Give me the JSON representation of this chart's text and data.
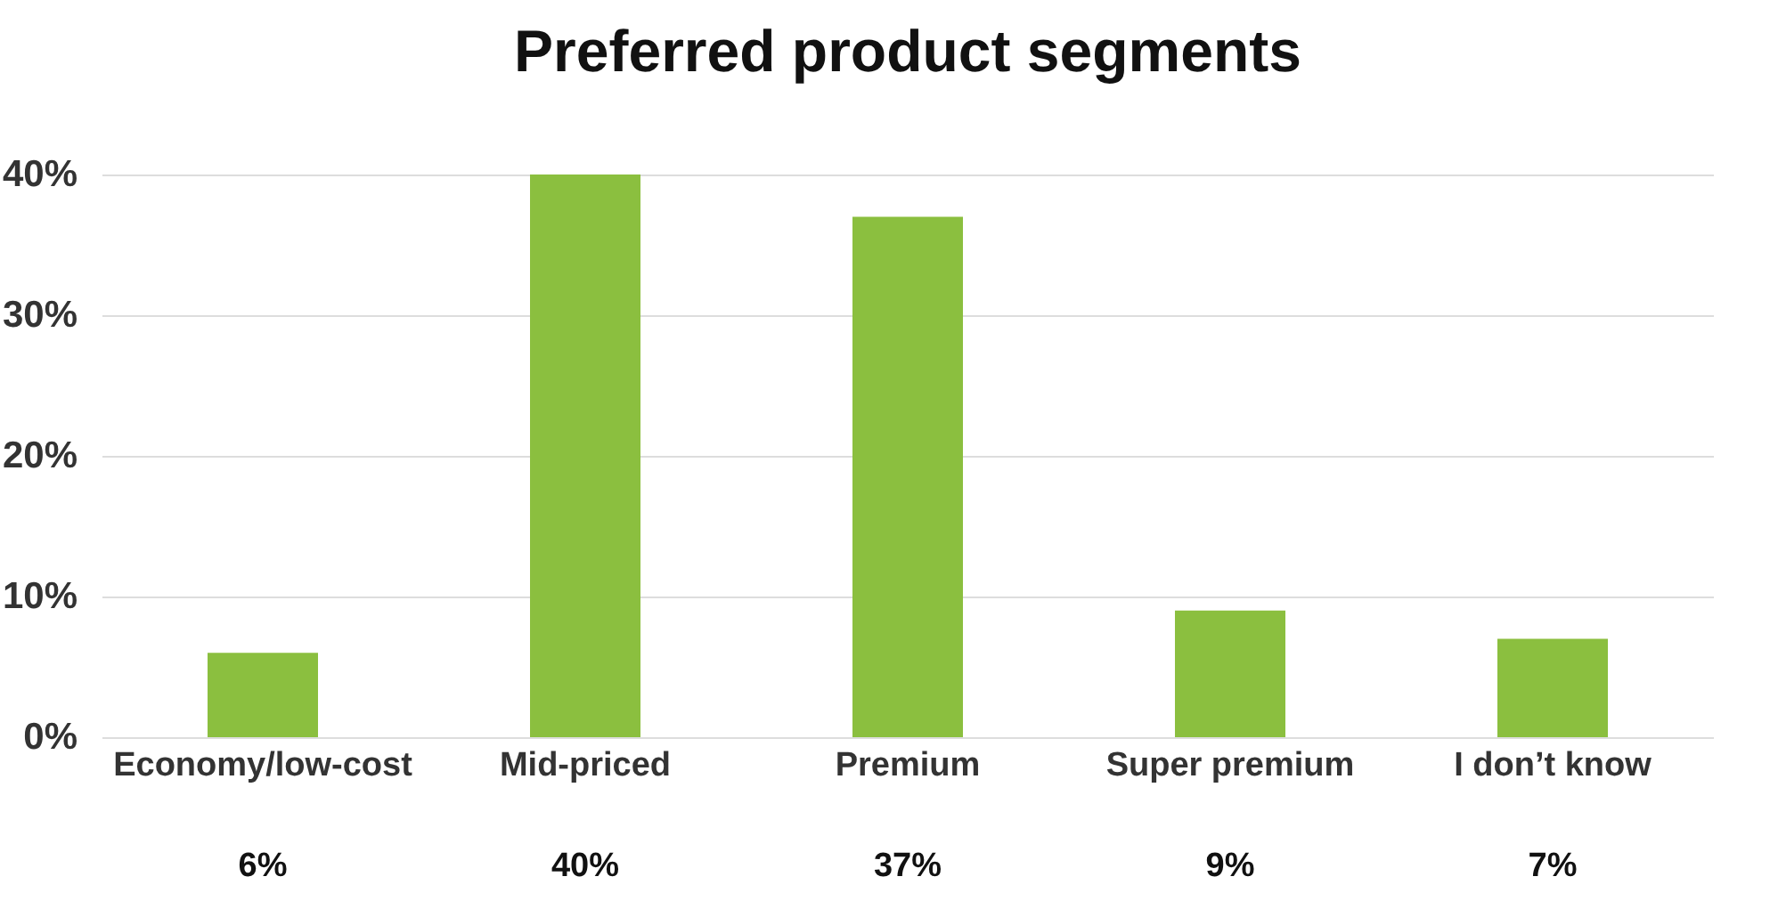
{
  "chart_data": {
    "type": "bar",
    "title": "Preferred product segments",
    "categories": [
      "Economy/low-cost",
      "Mid-priced",
      "Premium",
      "Super premium",
      "I don’t know"
    ],
    "values": [
      6,
      40,
      37,
      9,
      7
    ],
    "color": "#8bbf3f",
    "value_labels": [
      "6%",
      "40%",
      "37%",
      "9%",
      "7%"
    ],
    "ylim": [
      0,
      40
    ],
    "yticks": [
      {
        "value": 0,
        "label": "0%"
      },
      {
        "value": 10,
        "label": "10%"
      },
      {
        "value": 20,
        "label": "20%"
      },
      {
        "value": 30,
        "label": "30%"
      },
      {
        "value": 40,
        "label": "40%"
      }
    ],
    "grid": "y"
  }
}
